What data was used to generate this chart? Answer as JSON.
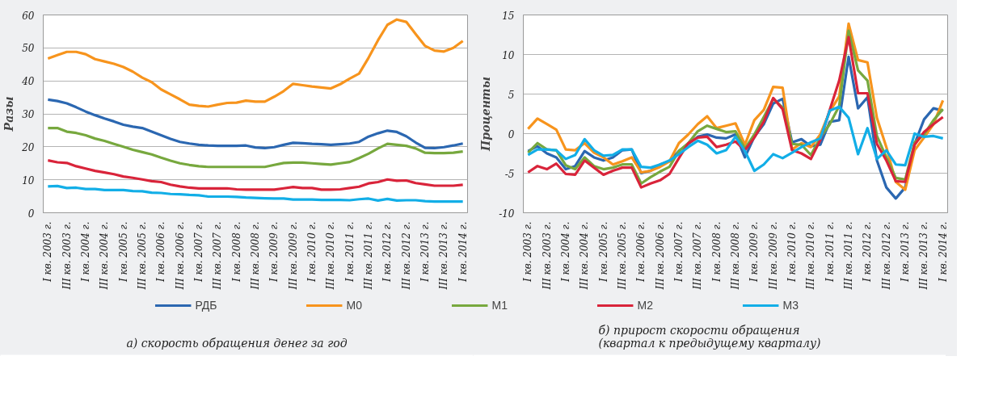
{
  "chart_data": [
    {
      "type": "line",
      "title": "а) скорость обращения денег за год",
      "ylabel": "Разы",
      "categories": [
        "I кв. 2003 г.",
        null,
        "III кв. 2003 г.",
        null,
        "I кв. 2004 г.",
        null,
        "III кв. 2004 г.",
        null,
        "I кв. 2005 г.",
        null,
        "III кв. 2005 г.",
        null,
        "I кв. 2006 г.",
        null,
        "III кв. 2006 г.",
        null,
        "I кв. 2007 г.",
        null,
        "III кв. 2007 г.",
        null,
        "I кв. 2008 г.",
        null,
        "III кв. 2008 г.",
        null,
        "I кв. 2009 г.",
        null,
        "III кв. 2009 г.",
        null,
        "I кв. 2010 г.",
        null,
        "III кв. 2010 г.",
        null,
        "I кв. 2011 г.",
        null,
        "III кв. 2011 г.",
        null,
        "I кв. 2012 г.",
        null,
        "III кв. 2012 г.",
        null,
        "I кв. 2013 г.",
        null,
        "III кв. 2013 г.",
        null,
        "I кв. 2014 г."
      ],
      "ylim": [
        0,
        60
      ],
      "yticks": [
        0,
        10,
        20,
        30,
        40,
        50,
        60
      ],
      "grid": "y",
      "legend": "bottom",
      "marker": "none",
      "line_style": "solid",
      "series": [
        {
          "name": "РДБ",
          "color": "#2b67b1",
          "values": [
            34.3,
            33.9,
            33.2,
            32,
            30.7,
            29.6,
            28.6,
            27.7,
            26.7,
            26.1,
            25.7,
            24.6,
            23.5,
            22.4,
            21.5,
            21,
            20.6,
            20.4,
            20.3,
            20.3,
            20.3,
            20.4,
            19.8,
            19.6,
            19.9,
            20.6,
            21.2,
            21.1,
            20.9,
            20.8,
            20.6,
            20.8,
            21,
            21.5,
            23.1,
            24.1,
            24.9,
            24.5,
            23.2,
            21.3,
            19.7,
            19.6,
            19.9,
            20.4,
            21
          ]
        },
        {
          "name": "М0",
          "color": "#f7941d",
          "values": [
            46.8,
            47.8,
            48.8,
            48.8,
            48.1,
            46.6,
            45.9,
            45.2,
            44.2,
            42.8,
            41,
            39.6,
            37.4,
            35.9,
            34.4,
            32.8,
            32.4,
            32.2,
            32.8,
            33.3,
            33.4,
            34,
            33.7,
            33.7,
            35.2,
            36.9,
            39.1,
            38.7,
            38.3,
            38,
            37.7,
            39,
            40.7,
            42.2,
            47,
            52.3,
            57,
            58.6,
            57.9,
            54.2,
            50.6,
            49.2,
            48.9,
            50,
            52.1
          ]
        },
        {
          "name": "М1",
          "color": "#77a83e",
          "values": [
            25.7,
            25.7,
            24.6,
            24.2,
            23.5,
            22.5,
            21.8,
            20.9,
            20,
            19.1,
            18.4,
            17.7,
            16.7,
            15.8,
            15,
            14.5,
            14.1,
            13.9,
            13.9,
            13.9,
            13.9,
            13.9,
            13.9,
            13.9,
            14.5,
            15.1,
            15.2,
            15.2,
            15,
            14.8,
            14.6,
            15,
            15.4,
            16.6,
            17.9,
            19.5,
            20.9,
            20.6,
            20.3,
            19.5,
            18.2,
            18.1,
            18.1,
            18.2,
            18.6
          ]
        },
        {
          "name": "М2",
          "color": "#d9243a",
          "values": [
            15.9,
            15.3,
            15.1,
            14.1,
            13.4,
            12.7,
            12.2,
            11.7,
            11,
            10.6,
            10.1,
            9.6,
            9.3,
            8.5,
            8,
            7.6,
            7.4,
            7.4,
            7.4,
            7.4,
            7.1,
            7,
            7,
            7,
            7,
            7.4,
            7.8,
            7.5,
            7.5,
            7,
            7,
            7.1,
            7.5,
            7.9,
            8.9,
            9.3,
            10.1,
            9.7,
            9.8,
            9,
            8.6,
            8.2,
            8.2,
            8.2,
            8.5
          ]
        },
        {
          "name": "М3",
          "color": "#12aee7",
          "values": [
            8,
            8.1,
            7.5,
            7.6,
            7.2,
            7.2,
            6.9,
            6.9,
            6.9,
            6.6,
            6.5,
            6.1,
            6,
            5.7,
            5.6,
            5.4,
            5.3,
            4.9,
            4.9,
            4.9,
            4.8,
            4.6,
            4.5,
            4.4,
            4.3,
            4.3,
            4,
            4,
            4,
            3.9,
            3.9,
            3.9,
            3.8,
            4.1,
            4.3,
            3.7,
            4.2,
            3.7,
            3.8,
            3.8,
            3.5,
            3.4,
            3.4,
            3.4,
            3.4
          ]
        }
      ]
    },
    {
      "type": "line",
      "title": "б) прирост скорости обращения\n(квартал к предыдущему кварталу)",
      "ylabel": "Проценты",
      "categories": [
        "I кв. 2003 г.",
        null,
        "III кв. 2003 г.",
        null,
        "I кв. 2004 г.",
        null,
        "III кв. 2004 г.",
        null,
        "I кв. 2005 г.",
        null,
        "III кв. 2005 г.",
        null,
        "I кв. 2006 г.",
        null,
        "III кв. 2006 г.",
        null,
        "I кв. 2007 г.",
        null,
        "III кв. 2007 г.",
        null,
        "I кв. 2008 г.",
        null,
        "III кв. 2008 г.",
        null,
        "I кв. 2009 г.",
        null,
        "III кв. 2009 г.",
        null,
        "I кв. 2010 г.",
        null,
        "III кв. 2010 г.",
        null,
        "I кв. 2011 г.",
        null,
        "III кв. 2011 г.",
        null,
        "I кв. 2012 г.",
        null,
        "III кв. 2012 г.",
        null,
        "I кв. 2013 г.",
        null,
        "III кв. 2013 г.",
        null,
        "I кв. 2014 г."
      ],
      "ylim": [
        -10,
        15
      ],
      "yticks": [
        -10,
        -5,
        0,
        5,
        10,
        15
      ],
      "grid": "y",
      "marker": "none",
      "line_style": "solid",
      "series": [
        {
          "color": "#2b67b1",
          "values": [
            -2.2,
            -1.6,
            -2.5,
            -3,
            -4.5,
            -4.1,
            -2.2,
            -3,
            -3.4,
            -3,
            -2.1,
            -2,
            -5,
            -4.7,
            -3.9,
            -3.5,
            -2.2,
            -1.3,
            -0.4,
            -0.1,
            -0.5,
            -0.6,
            -0.1,
            -3,
            -0.4,
            1.2,
            3.8,
            4.4,
            -1.1,
            -0.7,
            -1.6,
            -1.4,
            1.5,
            1.7,
            9.7,
            3.2,
            4.6,
            -3.4,
            -6.8,
            -8.2,
            -6.8,
            -1.3,
            1.8,
            3.2,
            2.9
          ]
        },
        {
          "color": "#f7941d",
          "values": [
            0.6,
            1.9,
            1.2,
            0.5,
            -2,
            -2.1,
            -1.2,
            -2.4,
            -3,
            -3.9,
            -3.5,
            -3,
            -4.9,
            -4.7,
            -4.2,
            -3.5,
            -1.2,
            -0.1,
            1.2,
            2.2,
            0.7,
            1,
            1.3,
            -1.4,
            1.7,
            3,
            5.9,
            5.8,
            -2,
            -1.2,
            -1.7,
            -0.1,
            2.8,
            4.7,
            13.9,
            9.3,
            9,
            2,
            -1.7,
            -6.1,
            -7.1,
            -2.1,
            -0.5,
            1.2,
            4.2
          ]
        },
        {
          "color": "#77a83e",
          "values": [
            -2.4,
            -1.2,
            -2,
            -2.1,
            -4,
            -4.5,
            -3,
            -4.1,
            -4.5,
            -4.3,
            -3.9,
            -3.9,
            -6.3,
            -5.5,
            -4.8,
            -4.2,
            -2.2,
            -1.2,
            0.3,
            1,
            0.6,
            0.2,
            0.3,
            -1.9,
            -0.1,
            2.1,
            4.4,
            3.3,
            -1.3,
            -1.4,
            -2.7,
            -0.5,
            1.2,
            3.5,
            13,
            8,
            6.7,
            -0.3,
            -3,
            -5.6,
            -5.8,
            -1.1,
            -0.1,
            1.7,
            3.1
          ]
        },
        {
          "color": "#d9243a",
          "values": [
            -4.9,
            -4.1,
            -4.5,
            -3.8,
            -5.1,
            -5.2,
            -3.4,
            -4.3,
            -5.2,
            -4.7,
            -4.3,
            -4.3,
            -6.8,
            -6.3,
            -5.9,
            -5.1,
            -3.1,
            -1.2,
            -0.5,
            -0.4,
            -1.7,
            -1.4,
            -1,
            -2.1,
            -0.5,
            1.5,
            4.5,
            3.1,
            -2.1,
            -2.5,
            -3.2,
            -0.8,
            3,
            6.7,
            12.2,
            5.1,
            5.1,
            -1.3,
            -3.4,
            -6,
            -6.1,
            -1.4,
            0.2,
            1.2,
            2.1
          ]
        },
        {
          "color": "#12aee7",
          "values": [
            -2.7,
            -2,
            -2,
            -2.1,
            -3.2,
            -2.7,
            -0.7,
            -2.1,
            -2.8,
            -2.7,
            -2,
            -2,
            -4.2,
            -4.3,
            -3.9,
            -3.4,
            -2.6,
            -1.7,
            -0.9,
            -1.4,
            -2.5,
            -2.1,
            -0.4,
            -2.2,
            -4.7,
            -3.9,
            -2.6,
            -3.1,
            -2.4,
            -1.7,
            -1.1,
            -0.6,
            2.9,
            3.4,
            2,
            -2.6,
            0.7,
            -3.2,
            -2.1,
            -3.9,
            -4,
            0,
            -0.4,
            -0.3,
            -0.6
          ]
        }
      ]
    }
  ]
}
